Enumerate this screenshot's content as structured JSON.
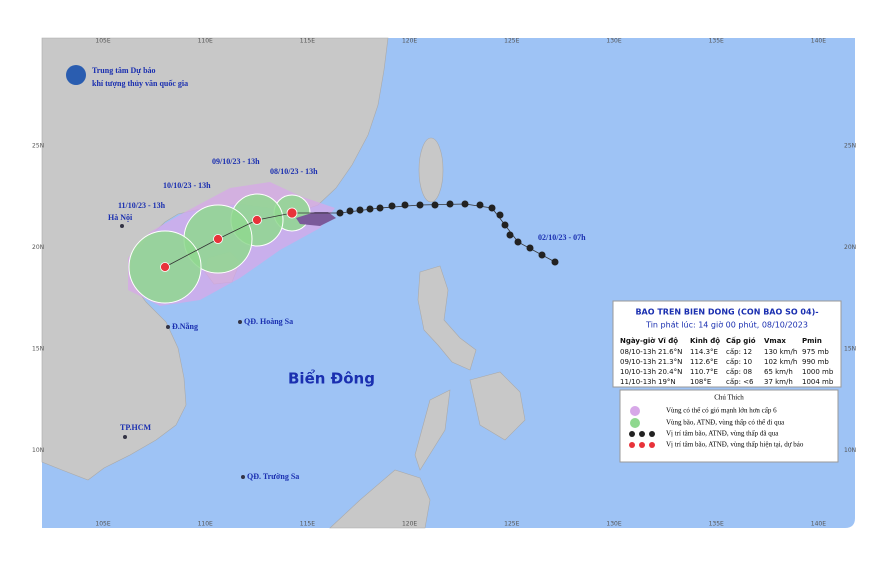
{
  "header": {
    "org_line1": "Trung tâm Dự báo",
    "org_line2": "khí tượng thủy văn quốc gia"
  },
  "grid_labels": {
    "lon": [
      "105E",
      "110E",
      "115E",
      "120E",
      "125E",
      "130E",
      "135E",
      "140E"
    ],
    "lat": [
      "25N",
      "20N",
      "15N",
      "10N"
    ]
  },
  "track_labels": [
    "09/10/23 - 13h",
    "08/10/23 - 13h",
    "10/10/23 - 13h",
    "11/10/23 - 13h",
    "02/10/23 - 07h"
  ],
  "places": {
    "hanoi": "Hà Nội",
    "danang": "Đ.Nẵng",
    "hoangsa": "QĐ. Hoàng Sa",
    "biendong": "Biển Đông",
    "hcm": "TP.HCM",
    "truongsa": "QĐ. Trường Sa"
  },
  "bulletin": {
    "title": "BAO TREN BIEN DONG (CON BAO SO 04)-",
    "issued": "Tin phát lúc: 14 giờ 00 phút, 08/10/2023",
    "columns": [
      "Ngày-giờ",
      "Vĩ độ",
      "Kinh độ",
      "Cấp gió",
      "Vmax",
      "Pmin"
    ],
    "rows": [
      [
        "08/10-13h",
        "21.6°N",
        "114.3°E",
        "cấp: 12",
        "130 km/h",
        "975 mb"
      ],
      [
        "09/10-13h",
        "21.3°N",
        "112.6°E",
        "cấp: 10",
        "102 km/h",
        "990 mb"
      ],
      [
        "10/10-13h",
        "20.4°N",
        "110.7°E",
        "cấp: 08",
        "65 km/h",
        "1000 mb"
      ],
      [
        "11/10-13h",
        "19°N",
        "108°E",
        "cấp: <6",
        "37 km/h",
        "1004 mb"
      ]
    ]
  },
  "legend": {
    "title": "Chú Thích",
    "items": [
      "Vùng có thể có gió mạnh lớn hơn cấp 6",
      "Vùng bão, ATNĐ, vùng thấp có thể đi qua",
      "Vị trí tâm bão, ATNĐ, vùng thấp đã qua",
      "Vị trí tâm bão, ATNĐ, vùng thấp hiện tại, dự báo"
    ]
  }
}
